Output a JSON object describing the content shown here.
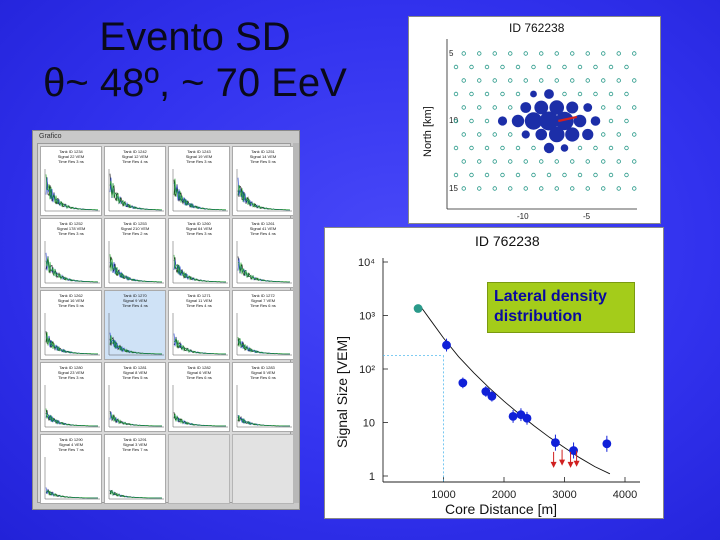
{
  "title": {
    "line1": "Evento SD",
    "line2": "θ~ 48º, ~ 70 EeV"
  },
  "left_panel": {
    "caption": "Grafico",
    "cells": [
      {
        "text": [
          "Tank ID 1234",
          "Signal 22 VEM",
          "Time Res 3 ns"
        ],
        "state": "normal"
      },
      {
        "text": [
          "Tank ID 1242",
          "Signal 12 VEM",
          "Time Res 4 ns"
        ],
        "state": "normal"
      },
      {
        "text": [
          "Tank ID 1243",
          "Signal 19 VEM",
          "Time Res 3 ns"
        ],
        "state": "normal"
      },
      {
        "text": [
          "Tank ID 1251",
          "Signal 14 VEM",
          "Time Res 5 ns"
        ],
        "state": "normal"
      },
      {
        "text": [
          "Tank ID 1252",
          "Signal 178 VEM",
          "Time Res 3 ns"
        ],
        "state": "normal"
      },
      {
        "text": [
          "Tank ID 1253",
          "Signal 210 VEM",
          "Time Res 2 ns"
        ],
        "state": "normal"
      },
      {
        "text": [
          "Tank ID 1260",
          "Signal 64 VEM",
          "Time Res 3 ns"
        ],
        "state": "normal"
      },
      {
        "text": [
          "Tank ID 1261",
          "Signal 41 VEM",
          "Time Res 4 ns"
        ],
        "state": "normal"
      },
      {
        "text": [
          "Tank ID 1262",
          "Signal 16 VEM",
          "Time Res 5 ns"
        ],
        "state": "normal"
      },
      {
        "text": [
          "Tank ID 1270",
          "Signal 9 VEM",
          "Time Res 4 ns"
        ],
        "state": "selected"
      },
      {
        "text": [
          "Tank ID 1271",
          "Signal 11 VEM",
          "Time Res 4 ns"
        ],
        "state": "normal"
      },
      {
        "text": [
          "Tank ID 1272",
          "Signal 7 VEM",
          "Time Res 6 ns"
        ],
        "state": "normal"
      },
      {
        "text": [
          "Tank ID 1280",
          "Signal 23 VEM",
          "Time Res 3 ns"
        ],
        "state": "normal"
      },
      {
        "text": [
          "Tank ID 1281",
          "Signal 8 VEM",
          "Time Res 5 ns"
        ],
        "state": "normal"
      },
      {
        "text": [
          "Tank ID 1282",
          "Signal 6 VEM",
          "Time Res 6 ns"
        ],
        "state": "normal"
      },
      {
        "text": [
          "Tank ID 1283",
          "Signal 5 VEM",
          "Time Res 6 ns"
        ],
        "state": "normal"
      },
      {
        "text": [
          "Tank ID 1290",
          "Signal 4 VEM",
          "Time Res 7 ns"
        ],
        "state": "normal"
      },
      {
        "text": [
          "Tank ID 1291",
          "Signal 3 VEM",
          "Time Res 7 ns"
        ],
        "state": "normal"
      },
      {
        "text": [],
        "state": "empty"
      },
      {
        "text": [],
        "state": "empty"
      }
    ]
  },
  "chart_data": [
    {
      "type": "scatter",
      "title": "ID 762238",
      "ylabel": "North [km]",
      "xlabel": "",
      "x_ticks": [
        "-10",
        "-5"
      ],
      "y_ticks": [
        "5",
        "10",
        "15"
      ],
      "grid": false,
      "colors": {
        "station": "#1c2ea8",
        "inactive": "#2a9a8a",
        "axis": "#d02020"
      },
      "stations": [
        {
          "x": 0,
          "y": 0,
          "signal": 210,
          "state": "hit"
        },
        {
          "x": 1,
          "y": 0,
          "signal": 178,
          "state": "hit"
        },
        {
          "x": -1,
          "y": 0,
          "signal": 120,
          "state": "hit"
        },
        {
          "x": 0,
          "y": 1,
          "signal": 64,
          "state": "hit"
        },
        {
          "x": 0,
          "y": -1,
          "signal": 48,
          "state": "hit"
        },
        {
          "x": 1,
          "y": 1,
          "signal": 41,
          "state": "hit"
        },
        {
          "x": -1,
          "y": -1,
          "signal": 36,
          "state": "hit"
        },
        {
          "x": 2,
          "y": 0,
          "signal": 23,
          "state": "hit"
        },
        {
          "x": -2,
          "y": 0,
          "signal": 22,
          "state": "hit"
        },
        {
          "x": 1,
          "y": -1,
          "signal": 19,
          "state": "hit"
        },
        {
          "x": -1,
          "y": 1,
          "signal": 16,
          "state": "hit"
        },
        {
          "x": 2,
          "y": 1,
          "signal": 14,
          "state": "hit"
        },
        {
          "x": -2,
          "y": -1,
          "signal": 12,
          "state": "hit"
        },
        {
          "x": 0,
          "y": 2,
          "signal": 11,
          "state": "hit"
        },
        {
          "x": 0,
          "y": -2,
          "signal": 9,
          "state": "hit"
        },
        {
          "x": 3,
          "y": 0,
          "signal": 8,
          "state": "hit"
        },
        {
          "x": -3,
          "y": 0,
          "signal": 7,
          "state": "hit"
        },
        {
          "x": 2,
          "y": -1,
          "signal": 6,
          "state": "hit"
        },
        {
          "x": -2,
          "y": 1,
          "signal": 5,
          "state": "hit"
        },
        {
          "x": 1,
          "y": 2,
          "signal": 4,
          "state": "hit"
        },
        {
          "x": -1,
          "y": -2,
          "signal": 3,
          "state": "hit"
        }
      ],
      "shower_axis": {
        "x": 0.6,
        "y": 0,
        "dx": 1.2,
        "dy": -0.3
      }
    },
    {
      "type": "scatter",
      "title": "ID 762238",
      "xlabel": "Core Distance [m]",
      "ylabel": "Signal Size [VEM]",
      "xlim": [
        0,
        4000
      ],
      "ylim": [
        1,
        10000
      ],
      "y_scale": "log",
      "x_ticks": [
        "1000",
        "2000",
        "3000",
        "4000"
      ],
      "y_ticks": [
        "1",
        "10",
        "10²",
        "10³",
        "10⁴"
      ],
      "grid": false,
      "colors": {
        "point": "#1020d8",
        "saturated": "#2a9a8a",
        "upper_limit": "#d02020",
        "fit": "#111111",
        "guide": "#55bbee"
      },
      "points": [
        {
          "x": 580,
          "y": 1350,
          "err": 0.0,
          "kind": "saturated"
        },
        {
          "x": 1050,
          "y": 280,
          "err": 0.12,
          "kind": "hit"
        },
        {
          "x": 1320,
          "y": 55,
          "err": 0.1,
          "kind": "hit"
        },
        {
          "x": 1700,
          "y": 38,
          "err": 0.1,
          "kind": "hit"
        },
        {
          "x": 1800,
          "y": 31,
          "err": 0.1,
          "kind": "hit"
        },
        {
          "x": 2150,
          "y": 13,
          "err": 0.12,
          "kind": "hit"
        },
        {
          "x": 2280,
          "y": 14,
          "err": 0.12,
          "kind": "hit"
        },
        {
          "x": 2380,
          "y": 12,
          "err": 0.12,
          "kind": "hit"
        },
        {
          "x": 2850,
          "y": 4.2,
          "err": 0.15,
          "kind": "hit"
        },
        {
          "x": 3150,
          "y": 3.0,
          "err": 0.15,
          "kind": "hit"
        },
        {
          "x": 3700,
          "y": 4.0,
          "err": 0.15,
          "kind": "hit"
        }
      ],
      "upper_limits": [
        {
          "x": 2820,
          "y": 2.0
        },
        {
          "x": 2960,
          "y": 2.2
        },
        {
          "x": 3100,
          "y": 2.0
        },
        {
          "x": 3200,
          "y": 2.1
        }
      ],
      "fit_curve": [
        {
          "x": 600,
          "y": 1600
        },
        {
          "x": 800,
          "y": 780
        },
        {
          "x": 1000,
          "y": 380
        },
        {
          "x": 1250,
          "y": 170
        },
        {
          "x": 1500,
          "y": 85
        },
        {
          "x": 1750,
          "y": 45
        },
        {
          "x": 2000,
          "y": 25
        },
        {
          "x": 2250,
          "y": 14.5
        },
        {
          "x": 2500,
          "y": 8.6
        },
        {
          "x": 2750,
          "y": 5.3
        },
        {
          "x": 3000,
          "y": 3.4
        },
        {
          "x": 3250,
          "y": 2.2
        },
        {
          "x": 3500,
          "y": 1.5
        },
        {
          "x": 3750,
          "y": 1.1
        }
      ],
      "guide_point": {
        "x": 1000,
        "y": 180
      },
      "annotation": "Lateral density distribution"
    }
  ]
}
